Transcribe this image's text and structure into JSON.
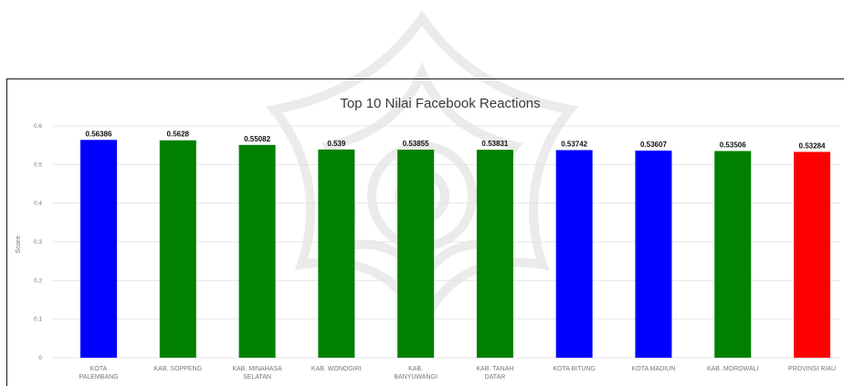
{
  "chart_data": {
    "type": "bar",
    "title": "Top 10 Nilai Facebook Reactions",
    "xlabel": "",
    "ylabel": "Score",
    "ylim": [
      0,
      0.6
    ],
    "yticks": [
      "0",
      "0.1",
      "0.2",
      "0.3",
      "0.4",
      "0.5",
      "0.6"
    ],
    "grid": true,
    "categories": [
      [
        "KOTA",
        "PALEMBANG"
      ],
      [
        "KAB. SOPPENG"
      ],
      [
        "KAB. MINAHASA",
        "SELATAN"
      ],
      [
        "KAB. WONOGIRI"
      ],
      [
        "KAB.",
        "BANYUWANGI"
      ],
      [
        "KAB. TANAH",
        "DATAR"
      ],
      [
        "KOTA BITUNG"
      ],
      [
        "KOTA MADIUN"
      ],
      [
        "KAB. MOROWALI"
      ],
      [
        "PROVINSI RIAU"
      ]
    ],
    "values": [
      0.56386,
      0.5628,
      0.55082,
      0.539,
      0.53855,
      0.53831,
      0.53742,
      0.53607,
      0.53506,
      0.53284
    ],
    "value_labels": [
      "0.56386",
      "0.5628",
      "0.55082",
      "0.539",
      "0.53855",
      "0.53831",
      "0.53742",
      "0.53607",
      "0.53506",
      "0.53284"
    ],
    "bar_colors": [
      "#0000ff",
      "#008000",
      "#008000",
      "#008000",
      "#008000",
      "#008000",
      "#0000ff",
      "#0000ff",
      "#008000",
      "#ff0000"
    ]
  }
}
